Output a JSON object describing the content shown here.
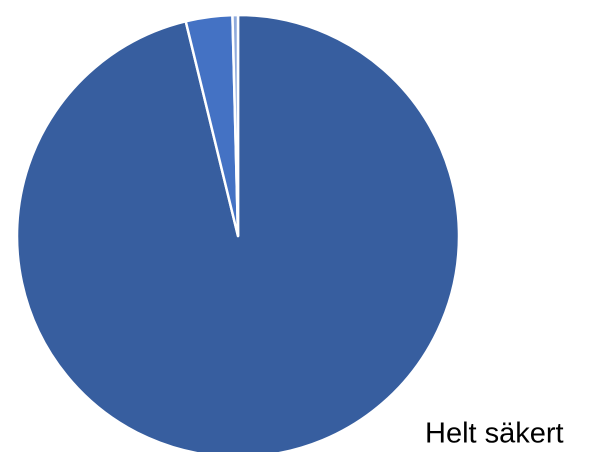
{
  "chart_data": {
    "type": "pie",
    "categories": [
      "Helt säkert",
      null,
      null
    ],
    "values": [
      96.2,
      3.4,
      0.4
    ],
    "colors": [
      "#375e9f",
      "#4472c4",
      "#8faadc"
    ],
    "start_angle": 0,
    "direction": "clockwise"
  }
}
